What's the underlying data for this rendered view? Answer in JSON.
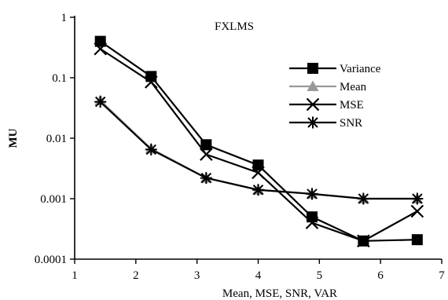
{
  "chart_data": {
    "type": "line",
    "title": "FXLMS",
    "xlabel": "Mean, MSE, SNR, VAR",
    "ylabel": "MU",
    "xlim": [
      1,
      7
    ],
    "ylim": [
      0.0001,
      1
    ],
    "yscale": "log",
    "x_ticks": [
      "1",
      "2",
      "3",
      "4",
      "5",
      "6",
      "7"
    ],
    "y_ticks": [
      "1",
      "0.1",
      "0.01",
      "0.001",
      "0.0001"
    ],
    "grid": false,
    "legend_position": "right",
    "series": [
      {
        "name": "Variance",
        "marker": "square",
        "color": "#000000",
        "x": [
          1.42,
          2.25,
          3.15,
          4.0,
          4.88,
          5.72,
          6.6
        ],
        "y": [
          0.4,
          0.105,
          0.0078,
          0.0036,
          0.0005,
          0.0002,
          0.00021
        ]
      },
      {
        "name": "Mean",
        "marker": "triangle",
        "color": "#999999",
        "x": [
          1.42,
          2.25,
          3.15,
          4.0,
          4.88,
          5.72,
          6.6
        ],
        "y": [
          0.042,
          0.0067,
          0.0022,
          0.0014,
          0.0012,
          0.001,
          0.001
        ]
      },
      {
        "name": "MSE",
        "marker": "x",
        "color": "#000000",
        "x": [
          1.42,
          2.25,
          3.15,
          4.0,
          4.88,
          5.72,
          6.6
        ],
        "y": [
          0.3,
          0.085,
          0.0054,
          0.0027,
          0.0004,
          0.0002,
          0.00062
        ]
      },
      {
        "name": "SNR",
        "marker": "asterisk",
        "color": "#000000",
        "x": [
          1.42,
          2.25,
          3.15,
          4.0,
          4.88,
          5.72,
          6.6
        ],
        "y": [
          0.04,
          0.0065,
          0.0022,
          0.0014,
          0.0012,
          0.001,
          0.001
        ]
      }
    ]
  }
}
